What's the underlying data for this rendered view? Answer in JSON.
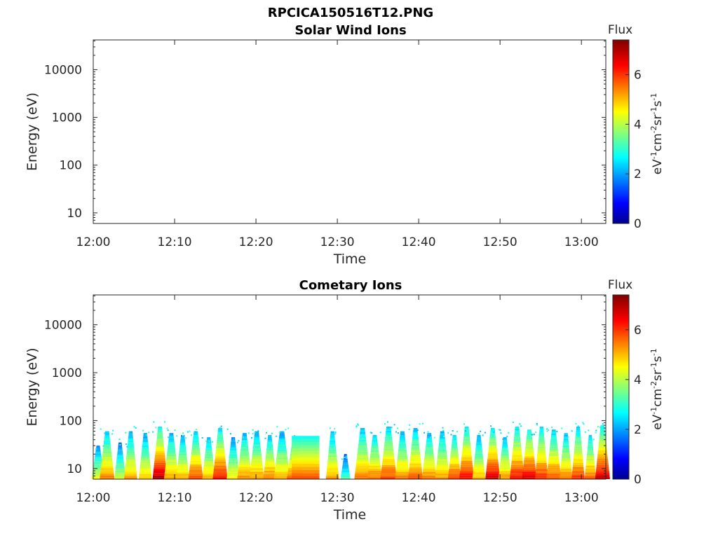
{
  "figure": {
    "filename_title": "RPCICA150516T12.PNG"
  },
  "chart_data": [
    {
      "type": "heatmap",
      "title": "Solar Wind Ions",
      "xlabel": "Time",
      "ylabel": "Energy (eV)",
      "x_ticks": [
        "12:00",
        "12:10",
        "12:20",
        "12:30",
        "12:40",
        "12:50",
        "13:00"
      ],
      "x_range_minutes": [
        0,
        63
      ],
      "y_scale": "log",
      "y_ticks": [
        10,
        100,
        1000,
        10000
      ],
      "y_range": [
        6,
        42000
      ],
      "colorbar": {
        "label_top": "Flux",
        "unit": "eV-1cm-2sr-1s-1",
        "ticks": [
          0,
          2,
          4,
          6
        ],
        "range": [
          0,
          7.4
        ],
        "colormap": "jet"
      },
      "spikes": [],
      "notes": "No data shown (blank panel)."
    },
    {
      "type": "heatmap",
      "title": "Cometary Ions",
      "xlabel": "Time",
      "ylabel": "Energy (eV)",
      "x_ticks": [
        "12:00",
        "12:10",
        "12:20",
        "12:30",
        "12:40",
        "12:50",
        "13:00"
      ],
      "x_range_minutes": [
        0,
        63
      ],
      "y_scale": "log",
      "y_ticks": [
        10,
        100,
        1000,
        10000
      ],
      "y_range": [
        6,
        42000
      ],
      "colorbar": {
        "label_top": "Flux",
        "unit": "eV-1cm-2sr-1s-1",
        "ticks": [
          0,
          2,
          4,
          6
        ],
        "range": [
          0,
          7.4
        ],
        "colormap": "jet"
      },
      "spikes": [
        {
          "t": 0.6,
          "w": 0.8,
          "top": 30,
          "peak": 4.8
        },
        {
          "t": 1.7,
          "w": 0.9,
          "top": 60,
          "peak": 5.8
        },
        {
          "t": 3.3,
          "w": 0.7,
          "top": 35,
          "peak": 4.5
        },
        {
          "t": 4.6,
          "w": 0.8,
          "top": 60,
          "peak": 5.5
        },
        {
          "t": 6.4,
          "w": 0.8,
          "top": 55,
          "peak": 5.2
        },
        {
          "t": 8.2,
          "w": 0.9,
          "top": 75,
          "peak": 7.2
        },
        {
          "t": 9.6,
          "w": 0.9,
          "top": 55,
          "peak": 5.6
        },
        {
          "t": 11.0,
          "w": 0.8,
          "top": 50,
          "peak": 5.4
        },
        {
          "t": 12.6,
          "w": 0.9,
          "top": 60,
          "peak": 6.2
        },
        {
          "t": 14.2,
          "w": 0.8,
          "top": 45,
          "peak": 5.5
        },
        {
          "t": 15.6,
          "w": 0.9,
          "top": 70,
          "peak": 6.6
        },
        {
          "t": 17.2,
          "w": 0.8,
          "top": 45,
          "peak": 5.0
        },
        {
          "t": 18.6,
          "w": 0.9,
          "top": 55,
          "peak": 5.7
        },
        {
          "t": 20.1,
          "w": 0.9,
          "top": 60,
          "peak": 5.6
        },
        {
          "t": 21.7,
          "w": 0.8,
          "top": 50,
          "peak": 5.9
        },
        {
          "t": 23.2,
          "w": 1.0,
          "top": 60,
          "peak": 5.4
        },
        {
          "t": 24.8,
          "w": 1.0,
          "top": 45,
          "peak": 6.0
        },
        {
          "t": 29.4,
          "w": 0.8,
          "top": 60,
          "peak": 5.6
        },
        {
          "t": 31.0,
          "w": 0.6,
          "top": 20,
          "peak": 3.6
        },
        {
          "t": 33.1,
          "w": 1.0,
          "top": 70,
          "peak": 5.8
        },
        {
          "t": 34.6,
          "w": 0.9,
          "top": 50,
          "peak": 5.9
        },
        {
          "t": 36.3,
          "w": 1.0,
          "top": 75,
          "peak": 6.2
        },
        {
          "t": 38.0,
          "w": 0.9,
          "top": 60,
          "peak": 5.7
        },
        {
          "t": 39.6,
          "w": 0.9,
          "top": 70,
          "peak": 6.0
        },
        {
          "t": 41.3,
          "w": 0.9,
          "top": 55,
          "peak": 5.8
        },
        {
          "t": 42.9,
          "w": 0.9,
          "top": 60,
          "peak": 5.6
        },
        {
          "t": 44.4,
          "w": 0.8,
          "top": 50,
          "peak": 6.3
        },
        {
          "t": 45.9,
          "w": 0.9,
          "top": 75,
          "peak": 6.7
        },
        {
          "t": 47.4,
          "w": 0.8,
          "top": 50,
          "peak": 5.4
        },
        {
          "t": 49.1,
          "w": 0.9,
          "top": 70,
          "peak": 7.0
        },
        {
          "t": 50.6,
          "w": 0.8,
          "top": 45,
          "peak": 5.6
        },
        {
          "t": 52.1,
          "w": 0.9,
          "top": 75,
          "peak": 6.6
        },
        {
          "t": 53.6,
          "w": 0.9,
          "top": 65,
          "peak": 6.9
        },
        {
          "t": 55.1,
          "w": 0.8,
          "top": 75,
          "peak": 6.4
        },
        {
          "t": 56.6,
          "w": 0.9,
          "top": 65,
          "peak": 6.2
        },
        {
          "t": 58.1,
          "w": 0.8,
          "top": 55,
          "peak": 5.8
        },
        {
          "t": 59.6,
          "w": 0.8,
          "top": 75,
          "peak": 6.3
        },
        {
          "t": 61.1,
          "w": 0.7,
          "top": 50,
          "peak": 6.0
        },
        {
          "t": 62.6,
          "w": 0.9,
          "top": 80,
          "peak": 7.1
        }
      ],
      "blocks": [
        {
          "t0": 24.4,
          "t1": 27.8,
          "top": 48,
          "peak": 5.9
        }
      ]
    }
  ]
}
